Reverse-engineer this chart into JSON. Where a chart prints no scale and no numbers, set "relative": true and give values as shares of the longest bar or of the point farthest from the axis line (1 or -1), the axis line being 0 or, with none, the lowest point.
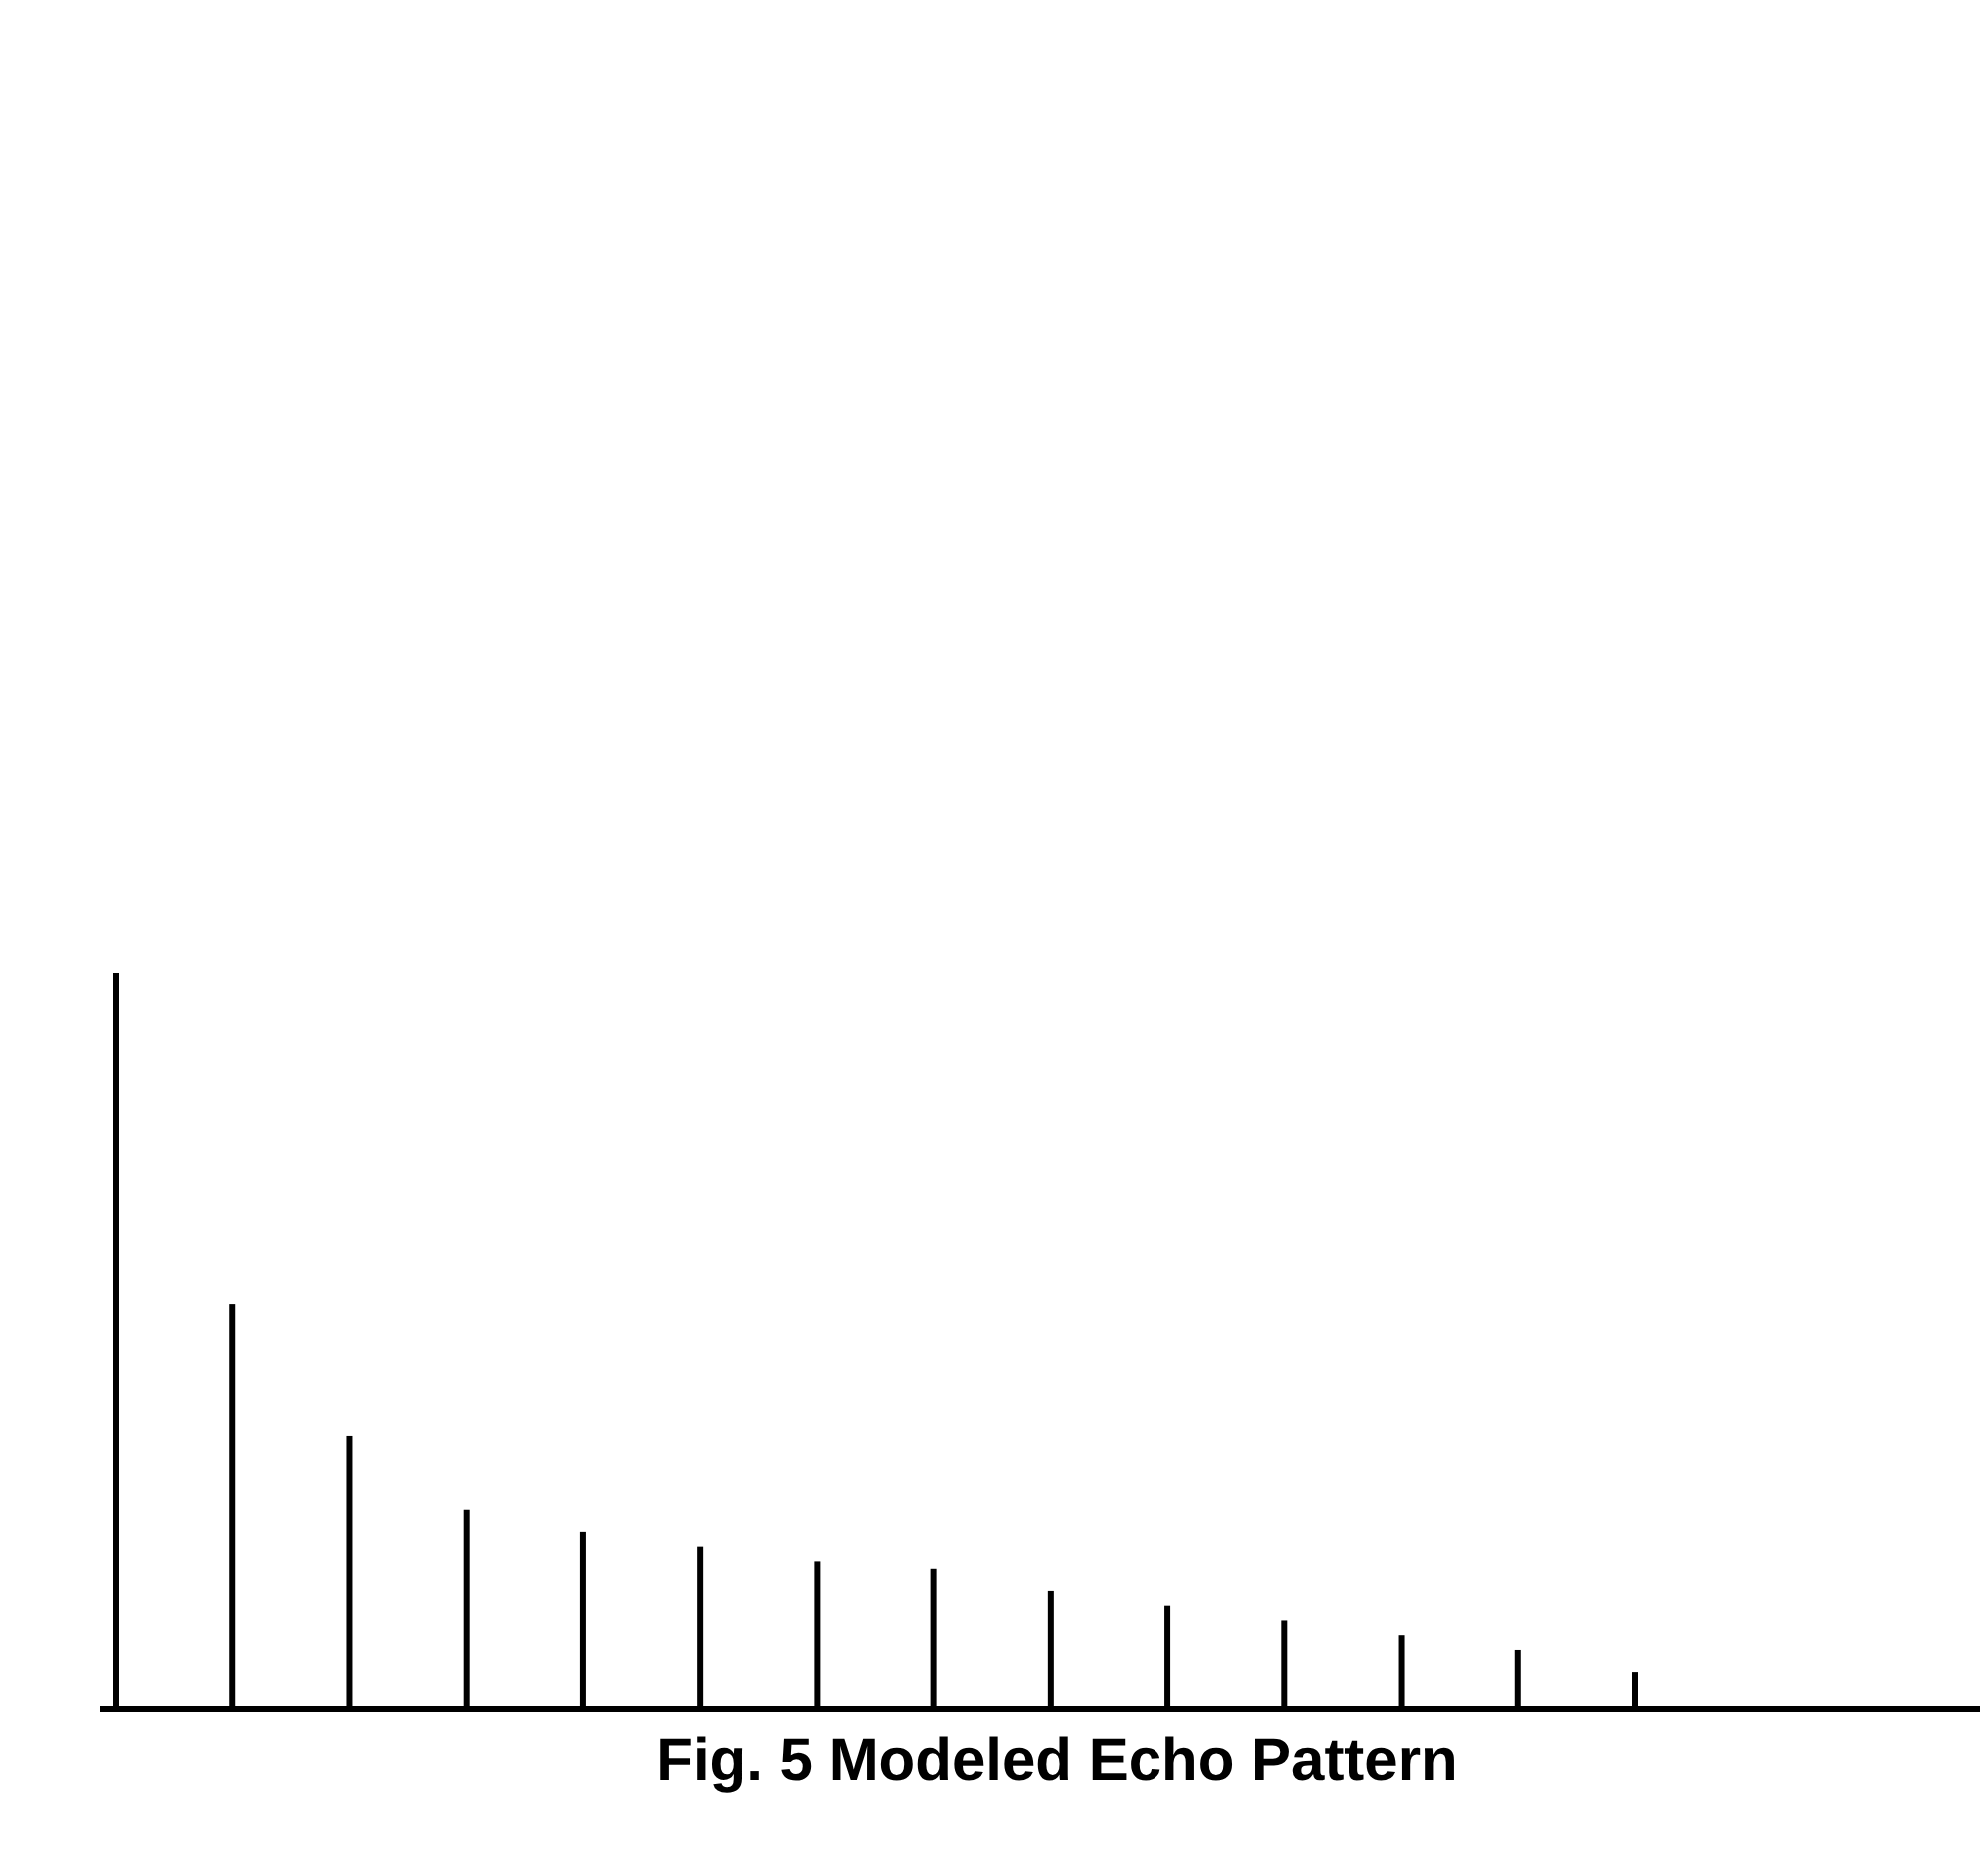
{
  "chart_data": {
    "type": "bar",
    "relative": true,
    "title": "Fig. 5  Modeled Echo Pattern",
    "color": "#000000",
    "categories": [
      null,
      null,
      null,
      null,
      null,
      null,
      null,
      null,
      null,
      null,
      null,
      null,
      null,
      null
    ],
    "values": [
      1,
      0.55,
      0.37,
      0.27,
      0.24,
      0.22,
      0.2,
      0.19,
      0.16,
      0.14,
      0.12,
      0.1,
      0.08,
      0.05
    ]
  }
}
